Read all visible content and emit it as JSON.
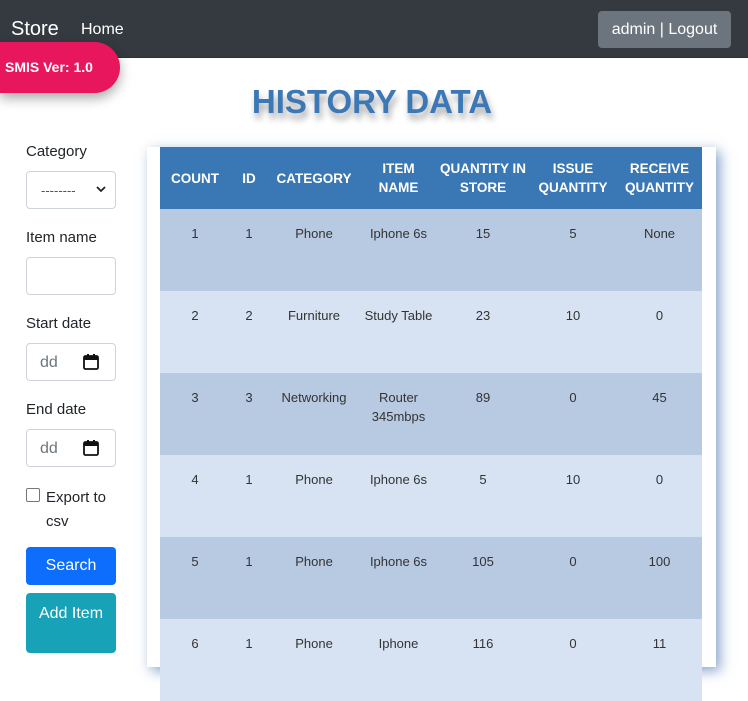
{
  "navbar": {
    "brand": "Store",
    "home_label": "Home",
    "user_button_label": "admin | Logout"
  },
  "version_badge": "SMIS Ver: 1.0",
  "page_title": "HISTORY DATA",
  "filters": {
    "category_label": "Category",
    "category_selected": "--------",
    "item_name_label": "Item name",
    "item_name_value": "",
    "start_date_label": "Start date",
    "start_date_placeholder": "dd",
    "end_date_label": "End date",
    "end_date_placeholder": "dd",
    "export_label": "Export to csv",
    "export_checked": false,
    "search_button": "Search",
    "add_item_button": "Add Item"
  },
  "table": {
    "headers": [
      "COUNT",
      "ID",
      "CATEGORY",
      "ITEM NAME",
      "QUANTITY IN STORE",
      "ISSUE QUANTITY",
      "RECEIVE QUANTITY"
    ],
    "rows": [
      [
        "1",
        "1",
        "Phone",
        "Iphone 6s",
        "15",
        "5",
        "None"
      ],
      [
        "2",
        "2",
        "Furniture",
        "Study Table",
        "23",
        "10",
        "0"
      ],
      [
        "3",
        "3",
        "Networking",
        "Router 345mbps",
        "89",
        "0",
        "45"
      ],
      [
        "4",
        "1",
        "Phone",
        "Iphone 6s",
        "5",
        "10",
        "0"
      ],
      [
        "5",
        "1",
        "Phone",
        "Iphone 6s",
        "105",
        "0",
        "100"
      ],
      [
        "6",
        "1",
        "Phone",
        "Iphone",
        "116",
        "0",
        "11"
      ]
    ]
  },
  "colors": {
    "navbar": "#343a40",
    "badge": "#e8175d",
    "title": "#3b78b5",
    "table_header": "#3a78b5",
    "row_odd": "#b8c9e2",
    "row_even": "#d7e3f2",
    "search_button": "#0d6efd",
    "add_button": "#17a2b8"
  }
}
